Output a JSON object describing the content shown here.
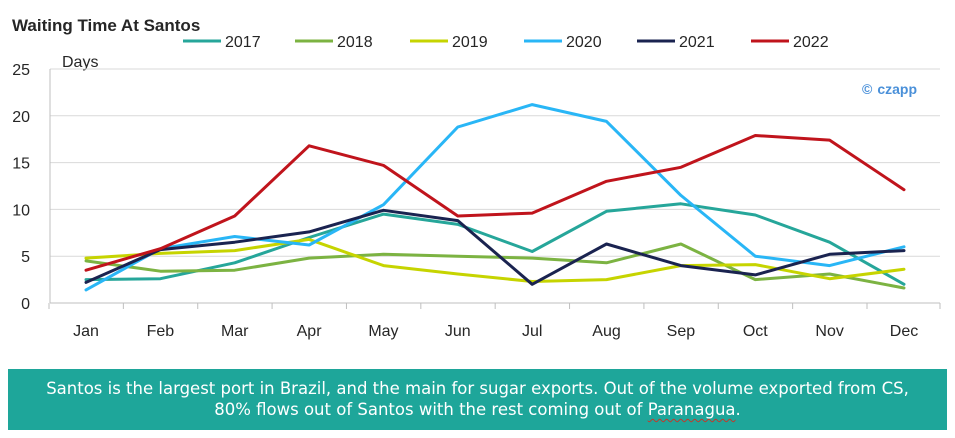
{
  "chart_data": {
    "type": "line",
    "title": "Waiting Time At Santos",
    "xlabel": "",
    "ylabel": "Days",
    "ylim": [
      0,
      25
    ],
    "yticks": [
      0,
      5,
      10,
      15,
      20,
      25
    ],
    "grid": true,
    "legend": "top",
    "categories": [
      "Jan",
      "Feb",
      "Mar",
      "Apr",
      "May",
      "Jun",
      "Jul",
      "Aug",
      "Sep",
      "Oct",
      "Nov",
      "Dec"
    ],
    "series": [
      {
        "name": "2017",
        "color": "#26a69a",
        "values": [
          2.5,
          2.6,
          4.3,
          7.0,
          9.5,
          8.4,
          5.5,
          9.8,
          10.6,
          9.4,
          6.5,
          2.0
        ]
      },
      {
        "name": "2018",
        "color": "#7cb342",
        "values": [
          4.5,
          3.4,
          3.5,
          4.8,
          5.2,
          5.0,
          4.8,
          4.3,
          6.3,
          2.5,
          3.1,
          1.6
        ]
      },
      {
        "name": "2019",
        "color": "#c6d400",
        "values": [
          4.8,
          5.3,
          5.6,
          6.8,
          4.0,
          3.1,
          2.3,
          2.5,
          4.0,
          4.1,
          2.6,
          3.6
        ]
      },
      {
        "name": "2020",
        "color": "#29b6f6",
        "values": [
          1.4,
          5.8,
          7.1,
          6.2,
          10.5,
          18.8,
          21.2,
          19.4,
          11.5,
          5.0,
          4.0,
          6.0
        ]
      },
      {
        "name": "2021",
        "color": "#1a2350",
        "values": [
          2.2,
          5.7,
          6.5,
          7.6,
          9.9,
          8.8,
          2.0,
          6.3,
          4.0,
          3.0,
          5.2,
          5.6
        ]
      },
      {
        "name": "2022",
        "color": "#c0141c",
        "values": [
          3.5,
          5.8,
          9.3,
          16.8,
          14.7,
          9.3,
          9.6,
          13.0,
          14.5,
          17.9,
          17.4,
          12.1
        ]
      }
    ],
    "annotation": "czapp"
  },
  "brand": {
    "symbol": "©",
    "name": "czapp",
    "color": "#4a90d9"
  },
  "caption": {
    "background": "#1ea69a",
    "text_main": "Santos is the largest port in Brazil, and the main for sugar exports. Out of the volume exported from CS, 80% flows out of Santos with the rest coming out of ",
    "text_highlight": "Paranagua",
    "text_end": "."
  }
}
